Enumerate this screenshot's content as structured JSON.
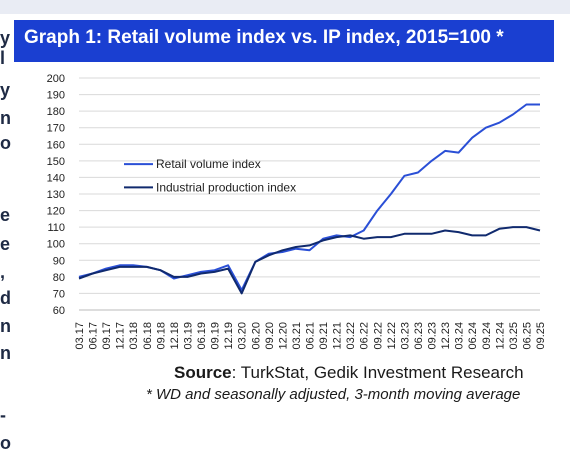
{
  "title": "Graph 1: Retail volume index vs. IP index, 2015=100 *",
  "source_label": "Source",
  "source_text": ": TurkStat, Gedik Investment Research",
  "note": "* WD and seasonally adjusted, 3-month moving average",
  "colors": {
    "title_bg": "#1a3fd1",
    "retail": "#2a4fd6",
    "ip": "#102a6e",
    "grid": "#d9d9d9"
  },
  "chart_data": {
    "type": "line",
    "x": [
      "03.17",
      "06.17",
      "09.17",
      "12.17",
      "03.18",
      "06.18",
      "09.18",
      "12.18",
      "03.19",
      "06.19",
      "09.19",
      "12.19",
      "03.20",
      "06.20",
      "09.20",
      "12.20",
      "03.21",
      "06.21",
      "09.21",
      "12.21",
      "03.22",
      "06.22",
      "09.22",
      "12.22",
      "03.23",
      "06.23",
      "09.23",
      "12.23",
      "03.24",
      "06.24",
      "09.24",
      "12.24",
      "03.25",
      "06.25",
      "09.25"
    ],
    "ylim": [
      60,
      200
    ],
    "yticks": [
      60,
      70,
      80,
      90,
      100,
      110,
      120,
      130,
      140,
      150,
      160,
      170,
      180,
      190,
      200
    ],
    "grid": true,
    "legend_position": "upper-middle",
    "series": [
      {
        "name": "Retail volume index",
        "values": [
          80,
          82,
          85,
          87,
          87,
          86,
          84,
          79,
          81,
          83,
          84,
          87,
          72,
          89,
          94,
          95,
          97,
          96,
          103,
          105,
          104,
          108,
          120,
          130,
          141,
          143,
          150,
          156,
          155,
          164,
          170,
          173,
          178,
          184,
          184
        ]
      },
      {
        "name": "Industrial production index",
        "values": [
          79,
          82,
          84,
          86,
          86,
          86,
          84,
          80,
          80,
          82,
          83,
          85,
          70,
          89,
          93,
          96,
          98,
          99,
          102,
          104,
          105,
          103,
          104,
          104,
          106,
          106,
          106,
          108,
          107,
          105,
          105,
          109,
          110,
          110,
          108
        ]
      }
    ]
  }
}
